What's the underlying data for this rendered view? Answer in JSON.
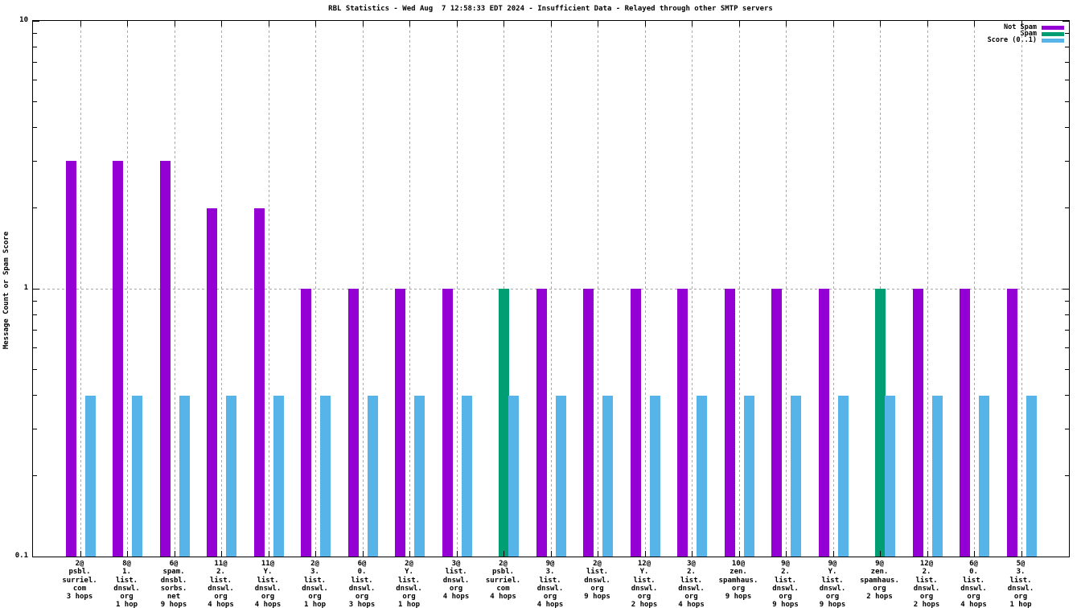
{
  "title": "RBL Statistics - Wed Aug  7 12:58:33 EDT 2024 - Insufficient Data - Relayed through other SMTP servers",
  "y_axis": {
    "label": "Message Count or Spam Score",
    "ticks": [
      {
        "value": 0.1,
        "label": "0.1"
      },
      {
        "value": 1,
        "label": "1"
      },
      {
        "value": 10,
        "label": "10"
      }
    ]
  },
  "chart_data": {
    "type": "bar",
    "yscale": "log",
    "ylim": [
      0.1,
      10
    ],
    "grid": {
      "vertical": "dashed-per-category",
      "horizontal_dotted_at": 1
    },
    "legend_position": "top-right-inside",
    "title": "RBL Statistics - Wed Aug  7 12:58:33 EDT 2024 - Insufficient Data - Relayed through other SMTP servers",
    "ylabel": "Message Count or Spam Score",
    "series": [
      {
        "name": "Not Spam",
        "key": "not_spam",
        "color": "#9400D3"
      },
      {
        "name": "Spam",
        "key": "spam",
        "color": "#009E73"
      },
      {
        "name": "Score (0..1)",
        "key": "score",
        "color": "#56B4E9"
      }
    ],
    "groups": [
      {
        "count": "2@",
        "domain": [
          "psbl.",
          "surriel.",
          "com"
        ],
        "hops": "3 hops",
        "not_spam": 3,
        "spam": 0,
        "score": 0.4
      },
      {
        "count": "8@",
        "domain": [
          "1.",
          "list.",
          "dnswl.",
          "org"
        ],
        "hops": "1 hop",
        "not_spam": 3,
        "spam": 0,
        "score": 0.4
      },
      {
        "count": "6@",
        "domain": [
          "spam.",
          "dnsbl.",
          "sorbs.",
          "net"
        ],
        "hops": "9 hops",
        "not_spam": 3,
        "spam": 0,
        "score": 0.4
      },
      {
        "count": "11@",
        "domain": [
          "2.",
          "list.",
          "dnswl.",
          "org"
        ],
        "hops": "4 hops",
        "not_spam": 2,
        "spam": 0,
        "score": 0.4
      },
      {
        "count": "11@",
        "domain": [
          "Y.",
          "list.",
          "dnswl.",
          "org"
        ],
        "hops": "4 hops",
        "not_spam": 2,
        "spam": 0,
        "score": 0.4
      },
      {
        "count": "2@",
        "domain": [
          "3.",
          "list.",
          "dnswl.",
          "org"
        ],
        "hops": "1 hop",
        "not_spam": 1,
        "spam": 0,
        "score": 0.4
      },
      {
        "count": "6@",
        "domain": [
          "0.",
          "list.",
          "dnswl.",
          "org"
        ],
        "hops": "3 hops",
        "not_spam": 1,
        "spam": 0,
        "score": 0.4
      },
      {
        "count": "2@",
        "domain": [
          "Y.",
          "list.",
          "dnswl.",
          "org"
        ],
        "hops": "1 hop",
        "not_spam": 1,
        "spam": 0,
        "score": 0.4
      },
      {
        "count": "3@",
        "domain": [
          "list.",
          "dnswl.",
          "org"
        ],
        "hops": "4 hops",
        "not_spam": 1,
        "spam": 0,
        "score": 0.4
      },
      {
        "count": "2@",
        "domain": [
          "psbl.",
          "surriel.",
          "com"
        ],
        "hops": "4 hops",
        "not_spam": 0,
        "spam": 1,
        "score": 0.4
      },
      {
        "count": "9@",
        "domain": [
          "3.",
          "list.",
          "dnswl.",
          "org"
        ],
        "hops": "4 hops",
        "not_spam": 1,
        "spam": 0,
        "score": 0.4
      },
      {
        "count": "2@",
        "domain": [
          "list.",
          "dnswl.",
          "org"
        ],
        "hops": "9 hops",
        "not_spam": 1,
        "spam": 0,
        "score": 0.4
      },
      {
        "count": "12@",
        "domain": [
          "Y.",
          "list.",
          "dnswl.",
          "org"
        ],
        "hops": "2 hops",
        "not_spam": 1,
        "spam": 0,
        "score": 0.4
      },
      {
        "count": "3@",
        "domain": [
          "2.",
          "list.",
          "dnswl.",
          "org"
        ],
        "hops": "4 hops",
        "not_spam": 1,
        "spam": 0,
        "score": 0.4
      },
      {
        "count": "10@",
        "domain": [
          "zen.",
          "spamhaus.",
          "org"
        ],
        "hops": "9 hops",
        "not_spam": 1,
        "spam": 0,
        "score": 0.4
      },
      {
        "count": "9@",
        "domain": [
          "2.",
          "list.",
          "dnswl.",
          "org"
        ],
        "hops": "9 hops",
        "not_spam": 1,
        "spam": 0,
        "score": 0.4
      },
      {
        "count": "9@",
        "domain": [
          "Y.",
          "list.",
          "dnswl.",
          "org"
        ],
        "hops": "9 hops",
        "not_spam": 1,
        "spam": 0,
        "score": 0.4
      },
      {
        "count": "9@",
        "domain": [
          "zen.",
          "spamhaus.",
          "org"
        ],
        "hops": "2 hops",
        "not_spam": 0,
        "spam": 1,
        "score": 0.4
      },
      {
        "count": "12@",
        "domain": [
          "2.",
          "list.",
          "dnswl.",
          "org"
        ],
        "hops": "2 hops",
        "not_spam": 1,
        "spam": 0,
        "score": 0.4
      },
      {
        "count": "6@",
        "domain": [
          "0.",
          "list.",
          "dnswl.",
          "org"
        ],
        "hops": "4 hops",
        "not_spam": 1,
        "spam": 0,
        "score": 0.4
      },
      {
        "count": "5@",
        "domain": [
          "3.",
          "list.",
          "dnswl.",
          "org"
        ],
        "hops": "1 hop",
        "not_spam": 1,
        "spam": 0,
        "score": 0.4
      }
    ]
  }
}
